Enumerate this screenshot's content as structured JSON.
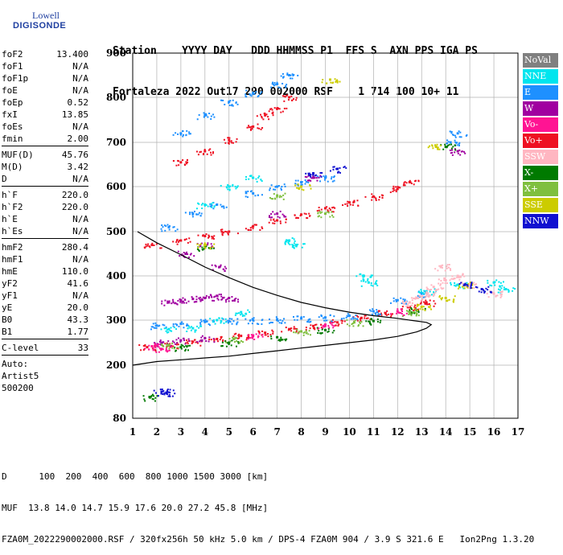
{
  "logo": {
    "line1": "Lowell",
    "line2": "DIGISONDE"
  },
  "header": {
    "row1": "Station    YYYY DAY   DDD HHMMSS P1  FFS S  AXN PPS IGA PS",
    "row2": "Fortaleza 2022 Out17 290 002000 RSF    1 714 100 10+ 11"
  },
  "params": {
    "group1": [
      {
        "name": "foF2",
        "value": "13.400"
      },
      {
        "name": "foF1",
        "value": "N/A"
      },
      {
        "name": "foF1p",
        "value": "N/A"
      },
      {
        "name": "foE",
        "value": "N/A"
      },
      {
        "name": "foEp",
        "value": "0.52"
      },
      {
        "name": "fxI",
        "value": "13.85"
      },
      {
        "name": "foEs",
        "value": "N/A"
      },
      {
        "name": "fmin",
        "value": "2.00"
      }
    ],
    "group2": [
      {
        "name": "MUF(D)",
        "value": "45.76"
      },
      {
        "name": "M(D)",
        "value": "3.42"
      },
      {
        "name": "D",
        "value": "N/A"
      }
    ],
    "group3": [
      {
        "name": "h`F",
        "value": "220.0"
      },
      {
        "name": "h`F2",
        "value": "220.0"
      },
      {
        "name": "h`E",
        "value": "N/A"
      },
      {
        "name": "h`Es",
        "value": "N/A"
      }
    ],
    "group4": [
      {
        "name": "hmF2",
        "value": "280.4"
      },
      {
        "name": "hmF1",
        "value": "N/A"
      },
      {
        "name": "hmE",
        "value": "110.0"
      },
      {
        "name": "yF2",
        "value": "41.6"
      },
      {
        "name": "yF1",
        "value": "N/A"
      },
      {
        "name": "yE",
        "value": "20.0"
      },
      {
        "name": "B0",
        "value": "43.3"
      },
      {
        "name": "B1",
        "value": "1.77"
      }
    ],
    "clevel": {
      "name": "C-level",
      "value": "33"
    },
    "auto": [
      "Auto:",
      "Artist5",
      "500200"
    ]
  },
  "legend": [
    {
      "label": "NoVal",
      "color": "#808080"
    },
    {
      "label": "NNE",
      "color": "#00e5ee"
    },
    {
      "label": "E",
      "color": "#1e90ff"
    },
    {
      "label": "W",
      "color": "#a000a0"
    },
    {
      "label": "Vo-",
      "color": "#ff1493"
    },
    {
      "label": "Vo+",
      "color": "#ee1122"
    },
    {
      "label": "SSW",
      "color": "#ffb6c1"
    },
    {
      "label": "X-",
      "color": "#007a00"
    },
    {
      "label": "X+",
      "color": "#7fbf3f"
    },
    {
      "label": "SSE",
      "color": "#cccc00"
    },
    {
      "label": "NNW",
      "color": "#1010d0"
    }
  ],
  "footer": {
    "dist": "D      100  200  400  600  800 1000 1500 3000 [km]",
    "muf": "MUF  13.8 14.0 14.7 15.9 17.6 20.0 27.2 45.8 [MHz]",
    "file": "FZA0M_2022290002000.RSF / 320fx256h 50 kHz 5.0 km / DPS-4 FZA0M 904 / 3.9 S 321.6 E   Ion2Png 1.3.20"
  },
  "chart_data": {
    "type": "scatter",
    "title": "",
    "xlabel": "",
    "ylabel": "",
    "xlim": [
      1,
      17
    ],
    "ylim": [
      80,
      900
    ],
    "x_ticks": [
      1,
      2,
      3,
      4,
      5,
      6,
      7,
      8,
      9,
      10,
      11,
      12,
      13,
      14,
      15,
      16,
      17
    ],
    "y_ticks": [
      80,
      200,
      300,
      400,
      500,
      600,
      700,
      800,
      900
    ],
    "grid": true,
    "series": [
      {
        "name": "Vo+",
        "color": "#ee1122",
        "points": [
          [
            1.6,
            240
          ],
          [
            2.5,
            245
          ],
          [
            3.5,
            252
          ],
          [
            4.5,
            258
          ],
          [
            5.5,
            265
          ],
          [
            6.5,
            272
          ],
          [
            7.5,
            280
          ],
          [
            8.5,
            287
          ],
          [
            9.5,
            295
          ],
          [
            10.5,
            305
          ],
          [
            11.5,
            316
          ],
          [
            12.5,
            330
          ],
          [
            13.2,
            340
          ],
          [
            1.8,
            470
          ],
          [
            3,
            480
          ],
          [
            4,
            490
          ],
          [
            5,
            500
          ],
          [
            6,
            512
          ],
          [
            7,
            525
          ],
          [
            8,
            538
          ],
          [
            9,
            552
          ],
          [
            10,
            565
          ],
          [
            11,
            578
          ],
          [
            12,
            595
          ],
          [
            12.5,
            610
          ],
          [
            3,
            655
          ],
          [
            4,
            680
          ],
          [
            5,
            705
          ],
          [
            6,
            735
          ],
          [
            6.5,
            760
          ],
          [
            7,
            775
          ],
          [
            7.5,
            800
          ]
        ]
      },
      {
        "name": "E",
        "color": "#1e90ff",
        "points": [
          [
            2,
            288
          ],
          [
            3,
            292
          ],
          [
            4,
            296
          ],
          [
            5,
            298
          ],
          [
            6,
            300
          ],
          [
            7,
            302
          ],
          [
            8,
            304
          ],
          [
            9,
            306
          ],
          [
            10,
            310
          ],
          [
            11,
            320
          ],
          [
            12,
            345
          ],
          [
            13,
            360
          ],
          [
            2.5,
            510
          ],
          [
            3.5,
            540
          ],
          [
            4.5,
            560
          ],
          [
            6,
            585
          ],
          [
            7,
            600
          ],
          [
            8,
            610
          ],
          [
            9,
            620
          ],
          [
            3,
            720
          ],
          [
            4,
            760
          ],
          [
            5,
            790
          ],
          [
            6,
            810
          ],
          [
            7,
            830
          ],
          [
            7.5,
            850
          ],
          [
            14.2,
            700
          ],
          [
            14.5,
            720
          ]
        ]
      },
      {
        "name": "W",
        "color": "#a000a0",
        "points": [
          [
            2.5,
            340
          ],
          [
            3,
            345
          ],
          [
            3.5,
            348
          ],
          [
            4,
            350
          ],
          [
            4.5,
            355
          ],
          [
            5,
            350
          ],
          [
            2.2,
            250
          ],
          [
            3,
            255
          ],
          [
            4,
            260
          ],
          [
            3.2,
            450
          ],
          [
            4,
            470
          ],
          [
            4.6,
            420
          ],
          [
            14.5,
            680
          ],
          [
            8.5,
            620
          ],
          [
            7,
            540
          ]
        ]
      },
      {
        "name": "NNE",
        "color": "#00e5ee",
        "points": [
          [
            2.5,
            280
          ],
          [
            3.5,
            282
          ],
          [
            4.5,
            300
          ],
          [
            5.5,
            318
          ],
          [
            10.6,
            400
          ],
          [
            10.8,
            385
          ],
          [
            13.2,
            365
          ],
          [
            14.5,
            380
          ],
          [
            16,
            385
          ],
          [
            16.5,
            370
          ],
          [
            7.5,
            480
          ],
          [
            7.8,
            470
          ],
          [
            4,
            560
          ],
          [
            5,
            600
          ],
          [
            6,
            620
          ]
        ]
      },
      {
        "name": "SSW",
        "color": "#ffb6c1",
        "points": [
          [
            12.5,
            340
          ],
          [
            12.8,
            350
          ],
          [
            13.2,
            360
          ],
          [
            13.5,
            375
          ],
          [
            14,
            390
          ],
          [
            14.5,
            400
          ],
          [
            15,
            380
          ],
          [
            16,
            360
          ],
          [
            13.8,
            420
          ]
        ]
      },
      {
        "name": "X-",
        "color": "#007a00",
        "points": [
          [
            1.7,
            128
          ],
          [
            3,
            240
          ],
          [
            5,
            250
          ],
          [
            7,
            262
          ],
          [
            9,
            278
          ],
          [
            11,
            298
          ],
          [
            12.8,
            322
          ],
          [
            14,
            690
          ],
          [
            4,
            465
          ]
        ]
      },
      {
        "name": "X+",
        "color": "#7fbf3f",
        "points": [
          [
            2.5,
            245
          ],
          [
            5.2,
            258
          ],
          [
            8,
            275
          ],
          [
            10.2,
            295
          ],
          [
            12.5,
            318
          ],
          [
            7,
            580
          ],
          [
            9,
            540
          ]
        ]
      },
      {
        "name": "SSE",
        "color": "#cccc00",
        "points": [
          [
            4,
            470
          ],
          [
            8,
            600
          ],
          [
            9.2,
            840
          ],
          [
            13.6,
            690
          ],
          [
            14,
            350
          ],
          [
            14.8,
            380
          ],
          [
            13,
            330
          ]
        ]
      },
      {
        "name": "NNW",
        "color": "#1010d0",
        "points": [
          [
            2.2,
            140
          ],
          [
            2.4,
            138
          ],
          [
            9.5,
            640
          ],
          [
            8.5,
            630
          ],
          [
            14.8,
            380
          ],
          [
            15.5,
            370
          ]
        ]
      },
      {
        "name": "Vo-",
        "color": "#ff1493",
        "points": [
          [
            1.8,
            242
          ],
          [
            2.2,
            236
          ],
          [
            6,
            266
          ],
          [
            9,
            290
          ],
          [
            12,
            320
          ]
        ]
      }
    ],
    "profile": {
      "color": "#000000",
      "points": [
        [
          1,
          200
        ],
        [
          2,
          208
        ],
        [
          3,
          212
        ],
        [
          4,
          216
        ],
        [
          5,
          220
        ],
        [
          6,
          226
        ],
        [
          7,
          232
        ],
        [
          8,
          238
        ],
        [
          9,
          244
        ],
        [
          10,
          250
        ],
        [
          11,
          256
        ],
        [
          12,
          264
        ],
        [
          12.8,
          274
        ],
        [
          13.2,
          282
        ],
        [
          13.4,
          290
        ],
        [
          13.2,
          295
        ],
        [
          12.5,
          300
        ],
        [
          12,
          304
        ],
        [
          11,
          310
        ],
        [
          10,
          318
        ],
        [
          9,
          328
        ],
        [
          8,
          340
        ],
        [
          7,
          356
        ],
        [
          6,
          374
        ],
        [
          5,
          396
        ],
        [
          4,
          420
        ],
        [
          3,
          448
        ],
        [
          2,
          475
        ],
        [
          1.2,
          500
        ]
      ]
    }
  }
}
